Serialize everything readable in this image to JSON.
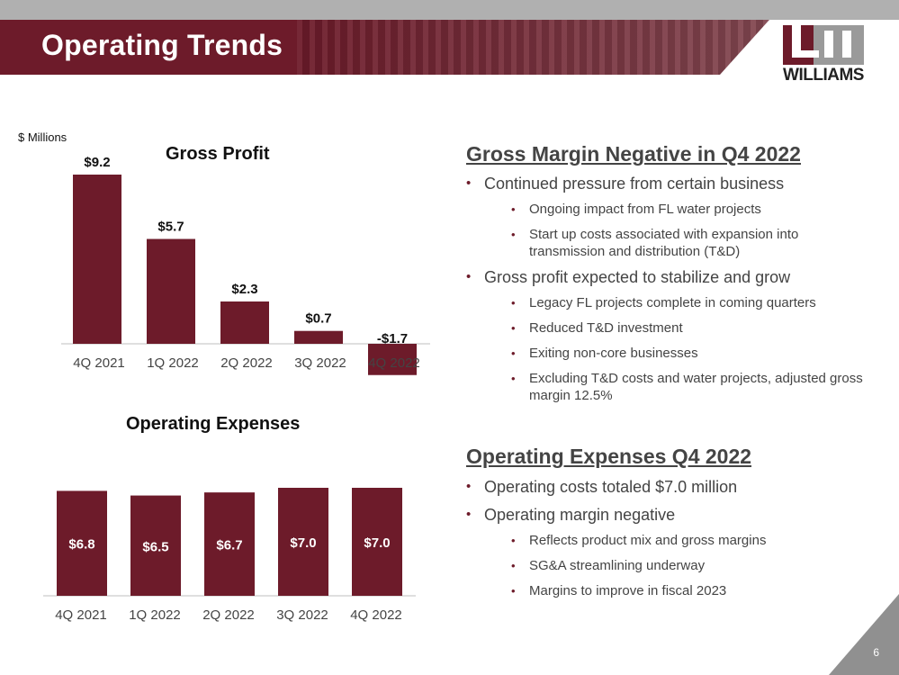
{
  "slide": {
    "title": "Operating Trends",
    "page_number": "6"
  },
  "logo": {
    "text": "WILLIAMS"
  },
  "units_label": "$ Millions",
  "colors": {
    "brand": "#6d1b2a",
    "text": "#444444"
  },
  "chart_data": [
    {
      "type": "bar",
      "title": "Gross Profit",
      "categories": [
        "4Q 2021",
        "1Q 2022",
        "2Q 2022",
        "3Q 2022",
        "4Q 2022"
      ],
      "values": [
        9.2,
        5.7,
        2.3,
        0.7,
        -1.7
      ],
      "labels": [
        "$9.2",
        "$5.7",
        "$2.3",
        "$0.7",
        "-$1.7"
      ],
      "ylabel": "$ Millions",
      "ylim": [
        -1.7,
        9.2
      ]
    },
    {
      "type": "bar",
      "title": "Operating Expenses",
      "categories": [
        "4Q 2021",
        "1Q 2022",
        "2Q 2022",
        "3Q 2022",
        "4Q 2022"
      ],
      "values": [
        6.8,
        6.5,
        6.7,
        7.0,
        7.0
      ],
      "labels": [
        "$6.8",
        "$6.5",
        "$6.7",
        "$7.0",
        "$7.0"
      ],
      "ylim": [
        0,
        7.0
      ]
    }
  ],
  "sections": [
    {
      "heading": "Gross Margin Negative in Q4 2022",
      "bullets": [
        {
          "text": "Continued pressure from certain business",
          "sub": [
            "Ongoing impact from FL water projects",
            "Start up costs associated with expansion into transmission and distribution (T&D)"
          ]
        },
        {
          "text": "Gross profit expected to stabilize and grow",
          "sub": [
            "Legacy FL projects complete in coming quarters",
            "Reduced T&D investment",
            "Exiting non-core businesses",
            "Excluding T&D costs and water projects, adjusted gross margin 12.5%"
          ]
        }
      ]
    },
    {
      "heading": "Operating Expenses Q4 2022",
      "bullets": [
        {
          "text": "Operating costs totaled $7.0 million",
          "sub": []
        },
        {
          "text": "Operating margin negative",
          "sub": [
            "Reflects product mix and gross margins",
            "SG&A streamlining underway",
            "Margins to improve in fiscal 2023"
          ]
        }
      ]
    }
  ]
}
